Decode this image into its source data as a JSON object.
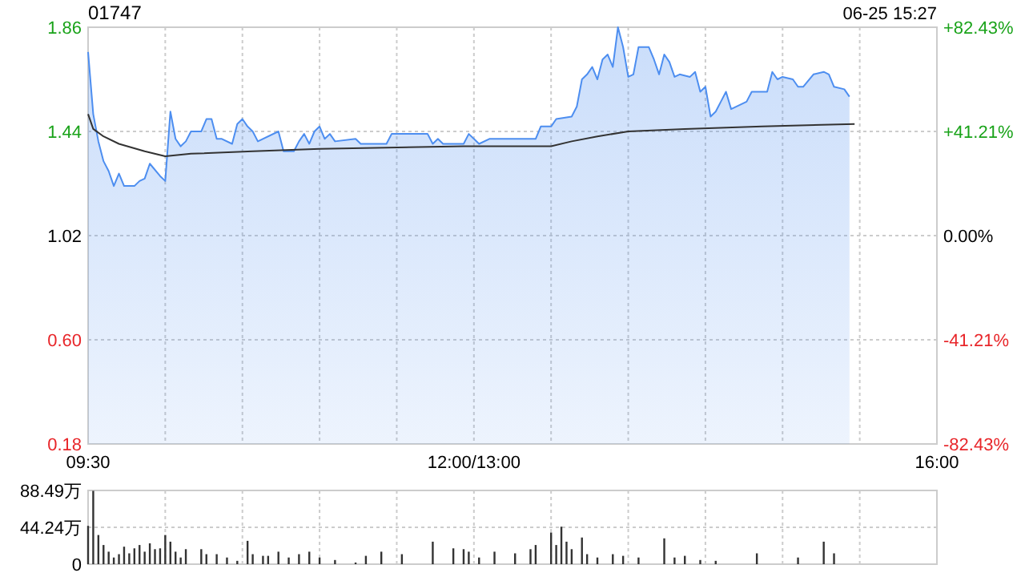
{
  "chart_data": [
    {
      "type": "area",
      "title": "01747",
      "annotations": [
        "06-25 15:27"
      ],
      "categories": [
        "09:30",
        null,
        null,
        null,
        null,
        null,
        null,
        null,
        null,
        null,
        null,
        null,
        null,
        null,
        null,
        null,
        null,
        null,
        null,
        null,
        null,
        null,
        null,
        null,
        null,
        null,
        null,
        null,
        null,
        null,
        null,
        null,
        null,
        null,
        null,
        null,
        null,
        null,
        null,
        null,
        null,
        null,
        null,
        null,
        null,
        null,
        null,
        null,
        null,
        null,
        null,
        null,
        null,
        null,
        null,
        null,
        null,
        null,
        null,
        null,
        null,
        null,
        null,
        null,
        null,
        null,
        null,
        null,
        null,
        null,
        null,
        null,
        null,
        null,
        null,
        "12:00/13:00",
        null,
        null,
        null,
        null,
        null,
        null,
        null,
        null,
        null,
        null,
        null,
        null,
        null,
        null,
        null,
        null,
        null,
        null,
        null,
        null,
        null,
        null,
        null,
        null,
        null,
        null,
        null,
        null,
        null,
        null,
        null,
        null,
        null,
        null,
        null,
        null,
        null,
        null,
        null,
        null,
        null,
        null,
        null,
        null,
        null,
        null,
        null,
        null,
        null,
        null,
        null,
        null,
        null,
        null,
        null,
        null,
        null,
        null,
        null,
        null,
        null,
        null,
        null,
        null,
        null,
        null,
        null,
        null,
        null,
        null,
        null,
        null,
        null,
        null,
        null,
        null,
        null,
        null,
        null,
        null,
        null,
        null,
        null,
        null,
        null,
        null,
        null,
        null,
        null,
        "16:00"
      ],
      "ylim": [
        0.18,
        1.86
      ],
      "yticks": [
        {
          "value": 0.18,
          "label": "0.18"
        },
        {
          "value": 0.6,
          "label": "0.60"
        },
        {
          "value": 1.02,
          "label": "1.02"
        },
        {
          "value": 1.44,
          "label": "1.44"
        },
        {
          "value": 1.86,
          "label": "1.86"
        }
      ],
      "y2lim": [
        -82.43,
        82.43
      ],
      "y2ticks": [
        {
          "value": -82.43,
          "label": "-82.43%"
        },
        {
          "value": -41.21,
          "label": "-41.21%"
        },
        {
          "value": 0,
          "label": "0.00%"
        },
        {
          "value": 41.21,
          "label": "+41.21%"
        },
        {
          "value": 82.43,
          "label": "+82.43%"
        }
      ],
      "grid": true,
      "series": [
        {
          "color": "#4d8ef0",
          "values": [
            1.76,
            1.51,
            1.4,
            1.32,
            1.28,
            1.22,
            1.27,
            1.22,
            null,
            1.22,
            1.24,
            1.25,
            1.31,
            null,
            1.26,
            1.24,
            1.52,
            1.41,
            1.38,
            1.4,
            1.44,
            null,
            1.44,
            1.49,
            1.49,
            1.41,
            1.41,
            null,
            1.39,
            1.47,
            1.49,
            1.46,
            1.44,
            1.4,
            null,
            null,
            null,
            1.44,
            1.36,
            null,
            1.36,
            1.4,
            1.43,
            1.39,
            1.44,
            1.46,
            1.41,
            1.43,
            1.4,
            null,
            null,
            null,
            1.41,
            1.39,
            null,
            1.39,
            null,
            1.39,
            1.39,
            1.43,
            null,
            null,
            null,
            null,
            null,
            null,
            1.43,
            1.39,
            1.41,
            1.39,
            null,
            null,
            null,
            1.39,
            1.43,
            1.41,
            1.39,
            null,
            1.41,
            1.41,
            null,
            null,
            null,
            null,
            null,
            null,
            null,
            1.41,
            1.46,
            null,
            1.46,
            1.49,
            null,
            null,
            1.5,
            1.54,
            1.65,
            1.67,
            1.7,
            1.65,
            1.73,
            1.75,
            1.7,
            1.86,
            1.78,
            1.66,
            1.67,
            1.78,
            null,
            1.78,
            1.73,
            1.67,
            1.75,
            1.72,
            1.66,
            1.67,
            null,
            1.66,
            1.68,
            1.6,
            1.62,
            1.5,
            1.52,
            1.56,
            1.6,
            1.53,
            null,
            null,
            1.56,
            1.6,
            null,
            null,
            1.6,
            1.68,
            1.65,
            1.66,
            null,
            1.65,
            1.62,
            1.62,
            null,
            1.67,
            null,
            1.68,
            1.67,
            1.62,
            null,
            1.61,
            1.58,
            null,
            null,
            null,
            null,
            null,
            null,
            null,
            null,
            null,
            null,
            null,
            null,
            null,
            null,
            null,
            null,
            null
          ]
        },
        {
          "type": "line",
          "color": "#333333",
          "values": [
            1.51,
            1.45,
            null,
            1.42,
            null,
            null,
            1.39,
            null,
            null,
            null,
            null,
            1.36,
            null,
            null,
            null,
            1.34,
            null,
            null,
            null,
            null,
            1.35,
            null,
            null,
            null,
            null,
            null,
            null,
            null,
            null,
            null,
            null,
            null,
            1.36,
            null,
            null,
            null,
            null,
            null,
            null,
            null,
            null,
            null,
            null,
            null,
            null,
            1.37,
            null,
            null,
            null,
            null,
            null,
            null,
            null,
            null,
            null,
            null,
            null,
            null,
            null,
            null,
            null,
            null,
            null,
            null,
            null,
            null,
            null,
            null,
            null,
            null,
            null,
            null,
            null,
            1.38,
            null,
            null,
            null,
            null,
            null,
            null,
            null,
            null,
            null,
            null,
            null,
            null,
            null,
            null,
            null,
            null,
            1.38,
            null,
            null,
            null,
            1.4,
            null,
            null,
            null,
            null,
            1.42,
            null,
            null,
            null,
            null,
            null,
            1.44,
            null,
            null,
            null,
            null,
            null,
            null,
            null,
            null,
            null,
            null,
            1.45,
            null,
            null,
            null,
            null,
            null,
            null,
            null,
            null,
            null,
            null,
            null,
            null,
            null,
            null,
            1.46,
            null,
            null,
            null,
            null,
            null,
            null,
            null,
            null,
            null,
            null,
            null,
            null,
            null,
            null,
            null,
            null,
            null,
            1.47,
            null,
            null,
            null,
            null,
            null,
            null,
            null,
            null,
            null,
            null,
            null,
            null,
            null,
            null,
            null,
            null
          ]
        }
      ]
    },
    {
      "type": "bar",
      "tick_labels": "y",
      "grid": true,
      "categories": [
        null,
        null,
        null,
        null,
        null,
        null,
        null,
        null,
        null,
        null,
        null,
        null,
        null,
        null,
        null,
        null,
        null,
        null,
        null,
        null,
        null,
        null,
        null,
        null,
        null,
        null,
        null,
        null,
        null,
        null,
        null,
        null,
        null,
        null,
        null,
        null,
        null,
        null,
        null,
        null,
        null,
        null,
        null,
        null,
        null,
        null,
        null,
        null,
        null,
        null,
        null,
        null,
        null,
        null,
        null,
        null,
        null,
        null,
        null,
        null,
        null,
        null,
        null,
        null,
        null,
        null,
        null,
        null,
        null,
        null,
        null,
        null,
        null,
        null,
        null,
        null,
        null,
        null,
        null,
        null,
        null,
        null,
        null,
        null,
        null,
        null,
        null,
        null,
        null,
        null,
        null,
        null,
        null,
        null,
        null,
        null,
        null,
        null,
        null,
        null,
        null,
        null,
        null,
        null,
        null,
        null,
        null,
        null,
        null,
        null,
        null,
        null,
        null,
        null,
        null,
        null,
        null,
        null,
        null,
        null,
        null,
        null,
        null,
        null,
        null,
        null,
        null,
        null,
        null,
        null,
        null,
        null,
        null,
        null,
        null,
        null,
        null,
        null,
        null,
        null,
        null,
        null,
        null,
        null,
        null,
        null,
        null,
        null,
        null,
        null,
        null,
        null,
        null,
        null,
        null,
        null,
        null,
        null,
        null,
        null,
        null,
        null,
        null,
        null,
        null,
        null
      ],
      "ylim": [
        0,
        88.49
      ],
      "yticks": [
        {
          "value": 0,
          "label": "0"
        },
        {
          "value": 44.24,
          "label": "44.24万"
        },
        {
          "value": 88.49,
          "label": "88.49万"
        }
      ],
      "series": [
        {
          "color": "#333333",
          "values": [
            46,
            88,
            35,
            23,
            15,
            8,
            12,
            21,
            13,
            19,
            23,
            15,
            25,
            18,
            19,
            35,
            27,
            15,
            8,
            18,
            null,
            null,
            18,
            12,
            null,
            12,
            null,
            8,
            null,
            4,
            null,
            28,
            12,
            null,
            10,
            10,
            null,
            15,
            null,
            8,
            null,
            12,
            null,
            15,
            null,
            8,
            null,
            null,
            5,
            null,
            null,
            null,
            2,
            null,
            10,
            null,
            null,
            15,
            null,
            null,
            null,
            12,
            null,
            null,
            null,
            null,
            null,
            27,
            null,
            null,
            null,
            19,
            null,
            18,
            15,
            null,
            8,
            null,
            null,
            15,
            null,
            null,
            null,
            13,
            null,
            null,
            18,
            23,
            null,
            null,
            38,
            23,
            45,
            27,
            18,
            null,
            32,
            12,
            null,
            8,
            null,
            null,
            12,
            null,
            10,
            null,
            null,
            8,
            null,
            null,
            null,
            null,
            31,
            null,
            8,
            null,
            10,
            null,
            null,
            5,
            null,
            null,
            4,
            null,
            null,
            null,
            null,
            null,
            null,
            null,
            13,
            null,
            null,
            null,
            null,
            null,
            null,
            null,
            8,
            null,
            null,
            null,
            null,
            27,
            null,
            13,
            null,
            null,
            null,
            null,
            null,
            null,
            null,
            null,
            null,
            null,
            null,
            null,
            null,
            null,
            null,
            null,
            null,
            null,
            null,
            null
          ]
        }
      ]
    }
  ]
}
